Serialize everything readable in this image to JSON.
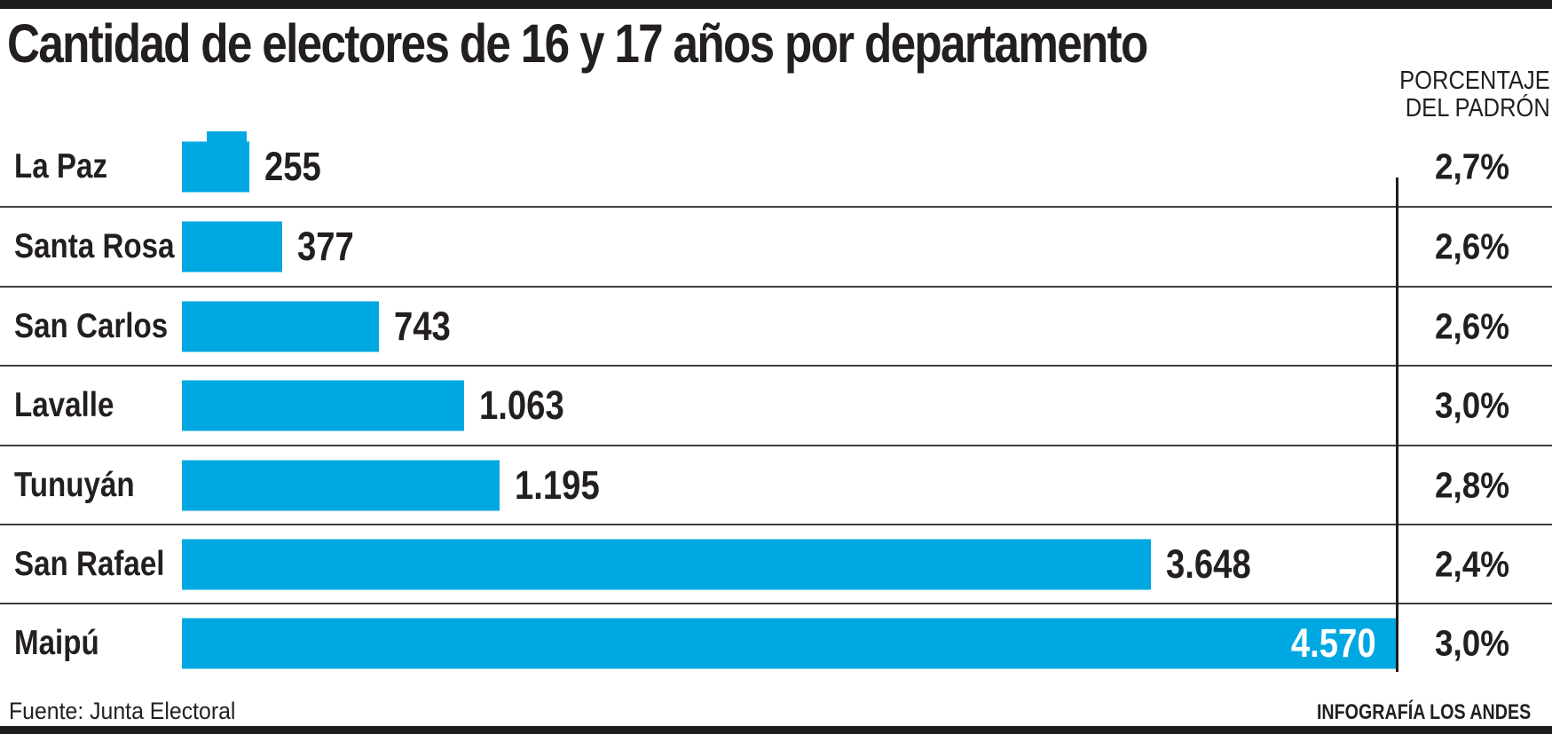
{
  "header": {
    "title": "Cantidad de electores de 16 y 17 años por departamento",
    "percent_header_line1": "PORCENTAJE",
    "percent_header_line2": "DEL PADRÓN"
  },
  "chart_data": {
    "type": "bar",
    "orientation": "horizontal",
    "title": "Cantidad de electores de 16 y 17 años por departamento",
    "categories": [
      "La Paz",
      "Santa Rosa",
      "San Carlos",
      "Lavalle",
      "Tunuyán",
      "San Rafael",
      "Maipú"
    ],
    "values": [
      255,
      377,
      743,
      1063,
      1195,
      3648,
      4570
    ],
    "value_labels": [
      "255",
      "377",
      "743",
      "1.063",
      "1.195",
      "3.648",
      "4.570"
    ],
    "percent_column_header": "PORCENTAJE DEL PADRÓN",
    "percent_labels": [
      "2,7%",
      "2,6%",
      "2,6%",
      "3,0%",
      "2,8%",
      "2,4%",
      "3,0%"
    ],
    "xlim": [
      0,
      4570
    ],
    "grid": false,
    "legend": false,
    "bar_color": "#00a8e2",
    "text_color": "#231f20",
    "separator_color": "#3f3f3f",
    "axis_line_color": "#1d1d1b"
  },
  "footer": {
    "source": "Fuente: Junta Electoral",
    "credit": "INFOGRAFÍA LOS ANDES"
  }
}
